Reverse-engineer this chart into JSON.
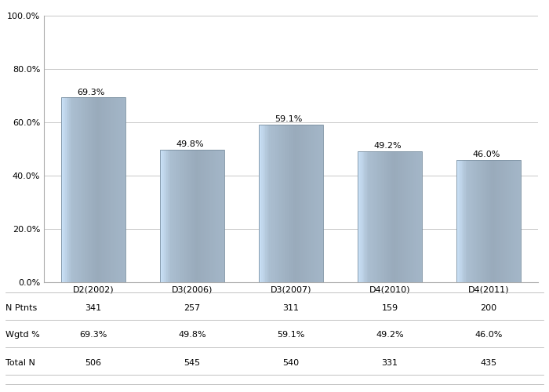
{
  "categories": [
    "D2(2002)",
    "D3(2006)",
    "D3(2007)",
    "D4(2010)",
    "D4(2011)"
  ],
  "values": [
    69.3,
    49.8,
    59.1,
    49.2,
    46.0
  ],
  "n_ptnts": [
    "341",
    "257",
    "311",
    "159",
    "200"
  ],
  "wgtd_pct": [
    "69.3%",
    "49.8%",
    "59.1%",
    "49.2%",
    "46.0%"
  ],
  "total_n": [
    "506",
    "545",
    "540",
    "331",
    "435"
  ],
  "ylim": [
    0,
    100
  ],
  "yticks": [
    0,
    20,
    40,
    60,
    80,
    100
  ],
  "ytick_labels": [
    "0.0%",
    "20.0%",
    "40.0%",
    "60.0%",
    "80.0%",
    "100.0%"
  ],
  "label_fontsize": 8,
  "tick_fontsize": 8,
  "table_fontsize": 8,
  "row_labels": [
    "N Ptnts",
    "Wgtd %",
    "Total N"
  ],
  "background_color": "#ffffff",
  "grid_color": "#c8c8c8",
  "bar_base_r": 176,
  "bar_base_g": 196,
  "bar_base_b": 215
}
